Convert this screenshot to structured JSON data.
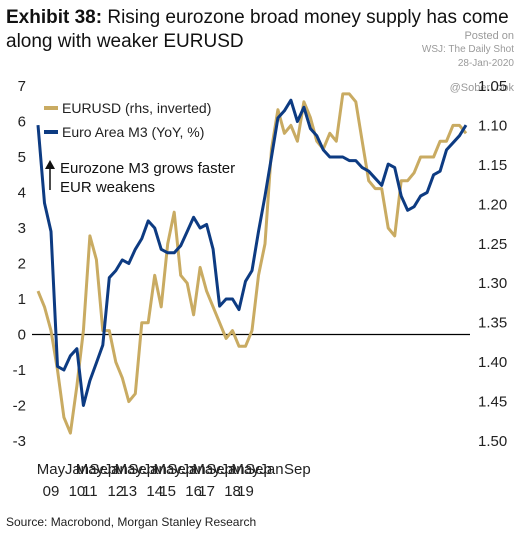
{
  "title": {
    "exhibit": "Exhibit 38:",
    "text": "Rising eurozone broad money supply has come along with weaker EURUSD"
  },
  "watermark": {
    "posted": "Posted on",
    "site": "WSJ: The Daily Shot",
    "date": "28-Jan-2020",
    "handle": "@SoberLook"
  },
  "source": "Source: Macrobond, Morgan Stanley Research",
  "annotation": {
    "line1": "Eurozone M3 grows faster",
    "line2": "EUR weakens"
  },
  "colors": {
    "eurusd": "#c9ab62",
    "m3": "#0d3b82",
    "zero_line": "#000000"
  },
  "chart_data": {
    "type": "line",
    "title": "Rising eurozone broad money supply has come along with weaker EURUSD",
    "left_axis": {
      "ylim": [
        -3,
        7
      ],
      "ticks": [
        "7",
        "6",
        "5",
        "4",
        "3",
        "2",
        "1",
        "0",
        "-1",
        "-2",
        "-3"
      ]
    },
    "right_axis": {
      "ylim": [
        1.05,
        1.5
      ],
      "inverted": true,
      "ticks": [
        "1.05",
        "1.10",
        "1.15",
        "1.20",
        "1.25",
        "1.30",
        "1.35",
        "1.40",
        "1.45",
        "1.50"
      ]
    },
    "x_ticks": [
      {
        "month": "May",
        "year": "09"
      },
      {
        "month": "Jan",
        "year": "10"
      },
      {
        "month": "Sep",
        "year": ""
      },
      {
        "month": "May",
        "year": "11"
      },
      {
        "month": "Jan",
        "year": "12"
      },
      {
        "month": "Sep",
        "year": ""
      },
      {
        "month": "May",
        "year": "13"
      },
      {
        "month": "Jan",
        "year": "14"
      },
      {
        "month": "Sep",
        "year": ""
      },
      {
        "month": "May",
        "year": "15"
      },
      {
        "month": "Jan",
        "year": "16"
      },
      {
        "month": "Sep",
        "year": ""
      },
      {
        "month": "May",
        "year": "17"
      },
      {
        "month": "Jan",
        "year": "18"
      },
      {
        "month": "Sep",
        "year": ""
      },
      {
        "month": "May",
        "year": "19"
      },
      {
        "month": "Jan",
        "year": ""
      },
      {
        "month": "Sep",
        "year": ""
      }
    ],
    "series": [
      {
        "name": "EURUSD (rhs, inverted)",
        "axis": "right",
        "x": [
          "2009-01",
          "2009-03",
          "2009-05",
          "2009-07",
          "2009-09",
          "2009-11",
          "2010-01",
          "2010-03",
          "2010-05",
          "2010-07",
          "2010-09",
          "2010-11",
          "2011-01",
          "2011-03",
          "2011-05",
          "2011-07",
          "2011-09",
          "2011-11",
          "2012-01",
          "2012-03",
          "2012-05",
          "2012-07",
          "2012-09",
          "2012-11",
          "2013-01",
          "2013-03",
          "2013-05",
          "2013-07",
          "2013-09",
          "2013-11",
          "2014-01",
          "2014-03",
          "2014-05",
          "2014-07",
          "2014-09",
          "2014-11",
          "2015-01",
          "2015-03",
          "2015-05",
          "2015-07",
          "2015-09",
          "2015-11",
          "2016-01",
          "2016-03",
          "2016-05",
          "2016-07",
          "2016-09",
          "2016-11",
          "2017-01",
          "2017-03",
          "2017-05",
          "2017-07",
          "2017-09",
          "2017-11",
          "2018-01",
          "2018-03",
          "2018-05",
          "2018-07",
          "2018-09",
          "2018-11",
          "2019-01",
          "2019-03",
          "2019-05",
          "2019-07",
          "2019-09",
          "2019-11",
          "2020-01"
        ],
        "values": [
          1.31,
          1.33,
          1.36,
          1.41,
          1.47,
          1.49,
          1.43,
          1.36,
          1.24,
          1.27,
          1.36,
          1.36,
          1.4,
          1.42,
          1.45,
          1.44,
          1.35,
          1.35,
          1.29,
          1.33,
          1.25,
          1.21,
          1.29,
          1.3,
          1.34,
          1.28,
          1.31,
          1.33,
          1.35,
          1.37,
          1.36,
          1.38,
          1.38,
          1.36,
          1.29,
          1.25,
          1.13,
          1.08,
          1.11,
          1.1,
          1.12,
          1.07,
          1.09,
          1.12,
          1.13,
          1.11,
          1.12,
          1.06,
          1.06,
          1.07,
          1.12,
          1.17,
          1.18,
          1.18,
          1.23,
          1.24,
          1.17,
          1.17,
          1.16,
          1.14,
          1.14,
          1.14,
          1.12,
          1.12,
          1.1,
          1.1,
          1.11
        ]
      },
      {
        "name": "Euro Area M3 (YoY, %)",
        "axis": "left",
        "x": [
          "2009-01",
          "2009-03",
          "2009-05",
          "2009-07",
          "2009-09",
          "2009-11",
          "2010-01",
          "2010-03",
          "2010-05",
          "2010-07",
          "2010-09",
          "2010-11",
          "2011-01",
          "2011-03",
          "2011-05",
          "2011-07",
          "2011-09",
          "2011-11",
          "2012-01",
          "2012-03",
          "2012-05",
          "2012-07",
          "2012-09",
          "2012-11",
          "2013-01",
          "2013-03",
          "2013-05",
          "2013-07",
          "2013-09",
          "2013-11",
          "2014-01",
          "2014-03",
          "2014-05",
          "2014-07",
          "2014-09",
          "2014-11",
          "2015-01",
          "2015-03",
          "2015-05",
          "2015-07",
          "2015-09",
          "2015-11",
          "2016-01",
          "2016-03",
          "2016-05",
          "2016-07",
          "2016-09",
          "2016-11",
          "2017-01",
          "2017-03",
          "2017-05",
          "2017-07",
          "2017-09",
          "2017-11",
          "2018-01",
          "2018-03",
          "2018-05",
          "2018-07",
          "2018-09",
          "2018-11",
          "2019-01",
          "2019-03",
          "2019-05",
          "2019-07",
          "2019-09",
          "2019-11",
          "2020-01"
        ],
        "values": [
          5.9,
          3.7,
          2.9,
          -0.9,
          -1.0,
          -0.6,
          -0.4,
          -2.0,
          -1.3,
          -0.8,
          -0.3,
          1.6,
          1.8,
          2.1,
          2.0,
          2.4,
          2.7,
          3.2,
          3.0,
          2.4,
          2.3,
          2.3,
          2.5,
          2.9,
          3.3,
          3.0,
          3.1,
          2.4,
          0.8,
          1.0,
          1.0,
          0.7,
          1.5,
          1.8,
          2.9,
          3.9,
          5.0,
          6.1,
          6.3,
          6.6,
          6.0,
          6.4,
          5.8,
          5.6,
          5.2,
          5.0,
          5.0,
          5.0,
          4.9,
          4.9,
          4.7,
          4.6,
          4.4,
          4.2,
          4.8,
          4.7,
          3.9,
          3.5,
          3.6,
          3.9,
          4.0,
          4.5,
          4.6,
          5.2,
          5.4,
          5.6,
          5.9
        ]
      }
    ]
  }
}
